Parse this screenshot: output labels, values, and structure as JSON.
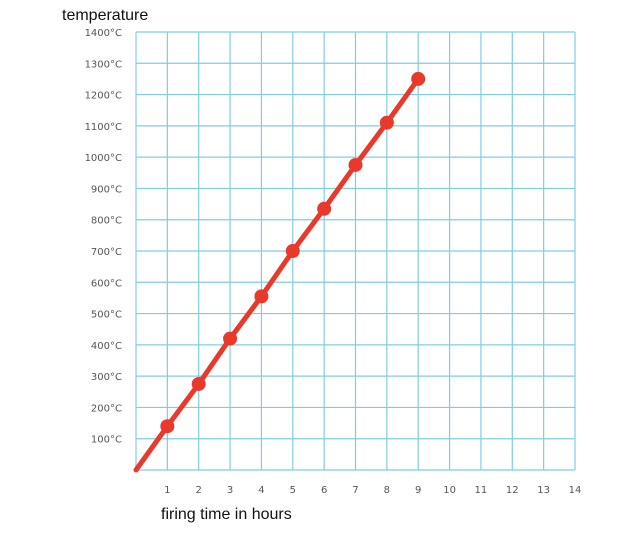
{
  "chart_data": {
    "type": "line",
    "ylabel": "temperature",
    "xlabel": "firing time in hours",
    "xlim": [
      0,
      14
    ],
    "ylim": [
      0,
      1400
    ],
    "x_ticks": [
      1,
      2,
      3,
      4,
      5,
      6,
      7,
      8,
      9,
      10,
      11,
      12,
      13,
      14
    ],
    "y_ticks": [
      "100°C",
      "200°C",
      "300°C",
      "400°C",
      "500°C",
      "600°C",
      "700°C",
      "800°C",
      "900°C",
      "1000°C",
      "1100°C",
      "1200°C",
      "1300°C",
      "1400°C"
    ],
    "grid": true,
    "series": [
      {
        "x": [
          0,
          1,
          2,
          3,
          4,
          5,
          6,
          7,
          8,
          9
        ],
        "y": [
          0,
          140,
          275,
          420,
          555,
          700,
          835,
          975,
          1110,
          1250
        ],
        "markers_at": [
          1,
          2,
          3,
          4,
          5,
          6,
          7,
          8,
          9
        ],
        "color": "#e8392a"
      }
    ],
    "grid_color": "#7fcde4"
  }
}
